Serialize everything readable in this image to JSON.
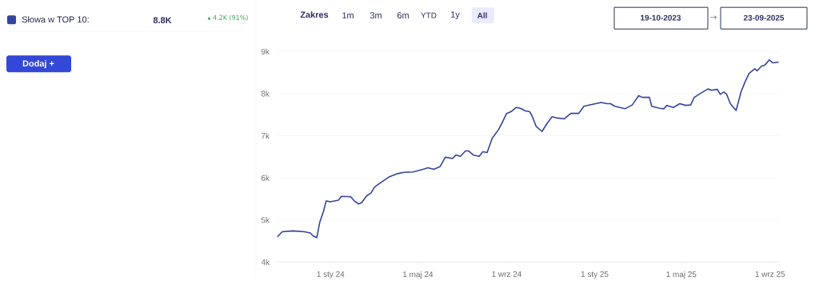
{
  "chart_data": {
    "type": "line",
    "legend": "left",
    "grid": "y",
    "marker": "none",
    "line_style": "solid",
    "xlim": [
      "2023-10-19",
      "2025-09-14"
    ],
    "ylim": [
      4000,
      9000
    ],
    "xticks": [
      {
        "value": "2024-01-01",
        "label": "1 sty 24"
      },
      {
        "value": "2024-05-01",
        "label": "1 maj 24"
      },
      {
        "value": "2024-09-01",
        "label": "1 wrz 24"
      },
      {
        "value": "2025-01-01",
        "label": "1 sty 25"
      },
      {
        "value": "2025-05-01",
        "label": "1 maj 25"
      },
      {
        "value": "2025-09-01",
        "label": "1 wrz 25"
      }
    ],
    "yticks": [
      {
        "value": 4000,
        "label": "4k"
      },
      {
        "value": 5000,
        "label": "5k"
      },
      {
        "value": 6000,
        "label": "6k"
      },
      {
        "value": 7000,
        "label": "7k"
      },
      {
        "value": 8000,
        "label": "8k"
      },
      {
        "value": 9000,
        "label": "9k"
      }
    ],
    "annotations": [
      "8.8K",
      "▴ 4.2K (91%)",
      "Dodaj +",
      "Zakres",
      "1m",
      "3m",
      "6m",
      "YTD",
      "1y",
      "All",
      "19-10-2023",
      "→",
      "23-09-2025"
    ],
    "series": [
      {
        "name": "Słowa w TOP 10:",
        "color": "#34449c",
        "x": [
          "2023-10-19",
          "2023-10-26",
          "2023-11-10",
          "2023-11-26",
          "2023-12-04",
          "2023-12-08",
          "2023-12-13",
          "2023-12-17",
          "2023-12-22",
          "2023-12-26",
          "2024-01-01",
          "2024-01-12",
          "2024-01-16",
          "2024-01-29",
          "2024-02-03",
          "2024-02-09",
          "2024-02-13",
          "2024-02-20",
          "2024-02-26",
          "2024-03-02",
          "2024-03-11",
          "2024-03-22",
          "2024-04-03",
          "2024-04-12",
          "2024-04-25",
          "2024-05-10",
          "2024-05-15",
          "2024-05-23",
          "2024-06-01",
          "2024-06-08",
          "2024-06-18",
          "2024-06-23",
          "2024-06-29",
          "2024-07-06",
          "2024-07-10",
          "2024-07-17",
          "2024-07-25",
          "2024-07-30",
          "2024-08-05",
          "2024-08-12",
          "2024-08-21",
          "2024-08-27",
          "2024-09-01",
          "2024-09-07",
          "2024-09-14",
          "2024-09-20",
          "2024-09-27",
          "2024-10-03",
          "2024-10-06",
          "2024-10-12",
          "2024-10-20",
          "2024-10-27",
          "2024-11-03",
          "2024-11-10",
          "2024-11-20",
          "2024-11-29",
          "2024-12-10",
          "2024-12-17",
          "2024-12-28",
          "2025-01-10",
          "2025-01-18",
          "2025-01-23",
          "2025-01-29",
          "2025-02-12",
          "2025-02-22",
          "2025-03-03",
          "2025-03-08",
          "2025-03-18",
          "2025-03-21",
          "2025-04-01",
          "2025-04-07",
          "2025-04-11",
          "2025-04-20",
          "2025-04-29",
          "2025-05-07",
          "2025-05-14",
          "2025-05-19",
          "2025-05-29",
          "2025-06-07",
          "2025-06-12",
          "2025-06-20",
          "2025-06-24",
          "2025-06-29",
          "2025-07-03",
          "2025-07-08",
          "2025-07-16",
          "2025-07-23",
          "2025-07-29",
          "2025-08-03",
          "2025-08-11",
          "2025-08-14",
          "2025-08-20",
          "2025-08-25",
          "2025-08-31",
          "2025-09-05",
          "2025-09-13"
        ],
        "values": [
          4590,
          4720,
          4740,
          4720,
          4690,
          4620,
          4580,
          4940,
          5190,
          5450,
          5430,
          5470,
          5560,
          5550,
          5450,
          5380,
          5410,
          5570,
          5640,
          5780,
          5890,
          6020,
          6100,
          6130,
          6140,
          6210,
          6240,
          6200,
          6270,
          6490,
          6460,
          6540,
          6510,
          6640,
          6640,
          6540,
          6510,
          6620,
          6600,
          6940,
          7150,
          7350,
          7530,
          7570,
          7670,
          7650,
          7590,
          7570,
          7480,
          7220,
          7100,
          7290,
          7450,
          7420,
          7400,
          7530,
          7530,
          7700,
          7740,
          7790,
          7760,
          7760,
          7700,
          7640,
          7730,
          7950,
          7910,
          7910,
          7700,
          7650,
          7640,
          7720,
          7670,
          7760,
          7720,
          7730,
          7910,
          8020,
          8110,
          8080,
          8100,
          7980,
          8040,
          7980,
          7760,
          7600,
          8050,
          8300,
          8480,
          8590,
          8540,
          8650,
          8680,
          8800,
          8730,
          8750
        ]
      }
    ]
  }
}
